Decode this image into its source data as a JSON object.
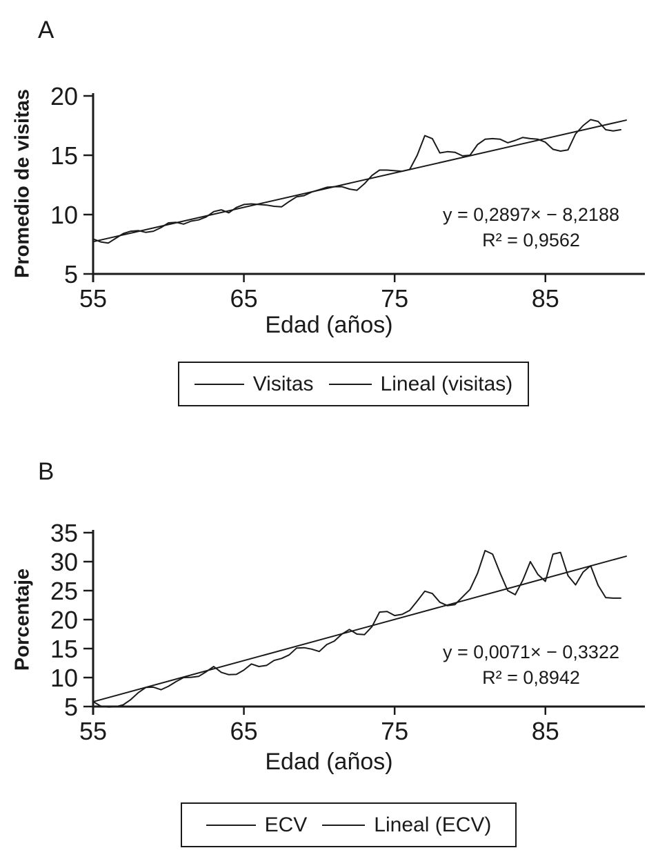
{
  "figure": {
    "background": "#ffffff",
    "ink_color": "#1a1a1a"
  },
  "panels": [
    {
      "panel_label": "A",
      "y_title": "Promedio de visitas",
      "x_title": "Edad (años)",
      "equation": "y = 0,2897× − 8,2188",
      "r_squared": "R² = 0,9562",
      "legend": [
        "Visitas",
        "Lineal (visitas)"
      ]
    },
    {
      "panel_label": "B",
      "y_title": "Porcentaje",
      "x_title": "Edad (años)",
      "equation": "y = 0,0071× − 0,3322",
      "r_squared": "R² = 0,8942",
      "legend": [
        "ECV",
        "Lineal (ECV)"
      ]
    }
  ],
  "chart_data": [
    {
      "type": "line",
      "title": "A",
      "xlabel": "Edad (años)",
      "ylabel": "Promedio de visitas",
      "xlim": [
        55,
        91.6
      ],
      "ylim": [
        5,
        20
      ],
      "xticks": [
        55,
        65,
        75,
        85
      ],
      "yticks": [
        5,
        10,
        15,
        20
      ],
      "grid": false,
      "legend_position": "bottom",
      "annotations": [
        "y = 0,2897× − 8,2188",
        "R² = 0,9562"
      ],
      "x_start": 55,
      "x_step": 0.5,
      "series": [
        {
          "name": "Visitas",
          "values": [
            7.95,
            7.7,
            7.6,
            8.0,
            8.4,
            8.6,
            8.65,
            8.5,
            8.6,
            8.9,
            9.3,
            9.35,
            9.2,
            9.45,
            9.55,
            9.8,
            10.25,
            10.4,
            10.15,
            10.6,
            10.85,
            10.9,
            10.85,
            10.8,
            10.7,
            10.65,
            11.1,
            11.5,
            11.6,
            11.9,
            12.1,
            12.3,
            12.35,
            12.35,
            12.15,
            12.05,
            12.6,
            13.3,
            13.75,
            13.75,
            13.7,
            13.65,
            13.8,
            15.0,
            16.65,
            16.4,
            15.2,
            15.3,
            15.25,
            14.95,
            15.0,
            15.9,
            16.35,
            16.4,
            16.35,
            16.05,
            16.25,
            16.5,
            16.4,
            16.35,
            16.1,
            15.5,
            15.35,
            15.45,
            16.8,
            17.5,
            18.0,
            17.85,
            17.15,
            17.05,
            17.15
          ]
        },
        {
          "name": "Lineal (visitas)",
          "trend": true,
          "slope": 0.2897,
          "intercept": -8.2188,
          "x_range": [
            55,
            90.4
          ]
        }
      ]
    },
    {
      "type": "line",
      "title": "B",
      "xlabel": "Edad (años)",
      "ylabel": "Porcentaje",
      "xlim": [
        55,
        91.6
      ],
      "ylim": [
        5,
        35
      ],
      "xticks": [
        55,
        65,
        75,
        85
      ],
      "yticks": [
        5,
        10,
        15,
        20,
        25,
        30,
        35
      ],
      "grid": false,
      "legend_position": "bottom",
      "annotations": [
        "y = 0,0071× − 0,3322",
        "R² = 0,8942"
      ],
      "x_start": 55,
      "x_step": 0.5,
      "series": [
        {
          "name": "ECV",
          "values": [
            5.85,
            5.1,
            4.9,
            4.95,
            5.3,
            6.2,
            7.4,
            8.3,
            8.35,
            7.9,
            8.5,
            9.3,
            10.0,
            10.05,
            10.2,
            11.0,
            11.9,
            10.9,
            10.5,
            10.55,
            11.3,
            12.35,
            11.9,
            12.1,
            12.95,
            13.3,
            13.9,
            15.1,
            15.15,
            14.9,
            14.5,
            15.7,
            16.3,
            17.5,
            18.3,
            17.5,
            17.4,
            18.8,
            21.3,
            21.4,
            20.7,
            20.9,
            21.6,
            23.2,
            24.9,
            24.5,
            23.0,
            22.4,
            22.6,
            23.9,
            25.2,
            28.0,
            31.9,
            31.3,
            28.0,
            25.0,
            24.3,
            26.8,
            30.0,
            27.8,
            26.6,
            31.3,
            31.6,
            27.6,
            26.0,
            28.2,
            29.3,
            25.9,
            23.8,
            23.7,
            23.7
          ]
        },
        {
          "name": "Lineal (ECV)",
          "trend": true,
          "slope": 0.71,
          "intercept": -33.22,
          "x_range": [
            55,
            90.4
          ]
        }
      ]
    }
  ]
}
